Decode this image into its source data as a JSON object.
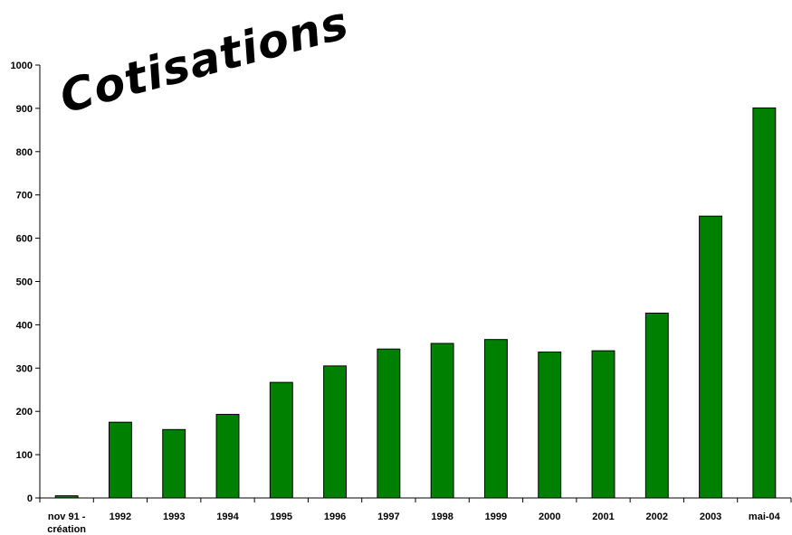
{
  "chart_data": {
    "type": "bar",
    "title": "Cotisations",
    "categories": [
      "nov 91 - création",
      "1992",
      "1993",
      "1994",
      "1995",
      "1996",
      "1997",
      "1998",
      "1999",
      "2000",
      "2001",
      "2002",
      "2003",
      "mai-04"
    ],
    "category_lines": [
      [
        "nov 91 -",
        "création"
      ],
      [
        "1992"
      ],
      [
        "1993"
      ],
      [
        "1994"
      ],
      [
        "1995"
      ],
      [
        "1996"
      ],
      [
        "1997"
      ],
      [
        "1998"
      ],
      [
        "1999"
      ],
      [
        "2000"
      ],
      [
        "2001"
      ],
      [
        "2002"
      ],
      [
        "2003"
      ],
      [
        "mai-04"
      ]
    ],
    "values": [
      5,
      175,
      158,
      193,
      267,
      305,
      344,
      357,
      366,
      337,
      340,
      427,
      651,
      901
    ],
    "ylim": [
      0,
      1000
    ],
    "yticks": [
      0,
      100,
      200,
      300,
      400,
      500,
      600,
      700,
      800,
      900,
      1000
    ],
    "xlabel": "",
    "ylabel": "",
    "grid": false,
    "bar_color": "#008000",
    "bar_edge_color": "#000000"
  }
}
